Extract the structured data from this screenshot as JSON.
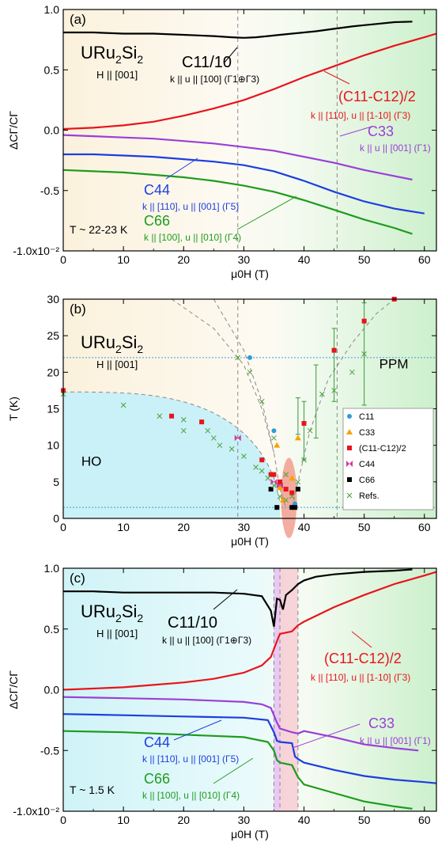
{
  "chart_data": [
    {
      "panel": "(a)",
      "type": "line",
      "compound_main": "URu",
      "compound_sub1": "2",
      "compound_mid": "Si",
      "compound_sub2": "2",
      "field_dir": "H || [001]",
      "temp_label": "T ~ 22-23 K",
      "ylabel": "ΔCΓ/CΓ",
      "xlabel": "μ0H (T)",
      "xlim": [
        0,
        62
      ],
      "ylim": [
        -1.0,
        1.0
      ],
      "xticks": [
        0,
        10,
        20,
        30,
        40,
        50,
        60
      ],
      "ytick_labels": [
        [
          "1.0",
          1.0
        ],
        [
          "0.5",
          0.5
        ],
        [
          "0.0",
          0.0
        ],
        [
          "-0.5",
          -0.5
        ],
        [
          "-1.0x10⁻²",
          -1.0
        ]
      ],
      "vlines": [
        29,
        45.5
      ],
      "series": [
        {
          "name": "C11/10",
          "color": "#000000",
          "note": "k || u || [100]  (Γ1⊕Γ3)",
          "x": [
            0,
            5,
            10,
            15,
            20,
            25,
            28,
            30,
            32,
            34,
            36,
            38,
            40,
            42,
            45,
            48,
            50,
            52,
            55,
            58
          ],
          "y": [
            0.81,
            0.81,
            0.8,
            0.8,
            0.79,
            0.78,
            0.77,
            0.765,
            0.77,
            0.78,
            0.79,
            0.8,
            0.81,
            0.82,
            0.84,
            0.86,
            0.87,
            0.88,
            0.895,
            0.9
          ]
        },
        {
          "name": "(C11-C12)/2",
          "color": "#e8141c",
          "note": "k || [110], u || [1-10]  (Γ3)",
          "x": [
            0,
            5,
            10,
            15,
            20,
            25,
            30,
            35,
            40,
            45,
            50,
            55,
            60,
            62
          ],
          "y": [
            0.01,
            0.02,
            0.04,
            0.07,
            0.12,
            0.18,
            0.25,
            0.34,
            0.44,
            0.53,
            0.62,
            0.7,
            0.77,
            0.8
          ]
        },
        {
          "name": "C33",
          "color": "#9b3fd6",
          "note": "k || u || [001]  (Γ1)",
          "x": [
            0,
            5,
            10,
            15,
            20,
            25,
            30,
            35,
            40,
            45,
            50,
            55,
            58
          ],
          "y": [
            -0.04,
            -0.05,
            -0.06,
            -0.07,
            -0.09,
            -0.11,
            -0.14,
            -0.17,
            -0.22,
            -0.27,
            -0.33,
            -0.38,
            -0.41
          ]
        },
        {
          "name": "C44",
          "color": "#1c3ee0",
          "note": "k || [110], u || [001]  (Γ5)",
          "x": [
            0,
            5,
            10,
            15,
            20,
            25,
            30,
            35,
            40,
            45,
            50,
            55,
            60
          ],
          "y": [
            -0.2,
            -0.2,
            -0.21,
            -0.22,
            -0.24,
            -0.26,
            -0.29,
            -0.34,
            -0.42,
            -0.51,
            -0.59,
            -0.65,
            -0.69
          ]
        },
        {
          "name": "C66",
          "color": "#1e9b1e",
          "note": "k || [100], u || [010]  (Γ4)",
          "x": [
            0,
            5,
            10,
            15,
            20,
            25,
            30,
            35,
            40,
            45,
            50,
            55,
            58
          ],
          "y": [
            -0.33,
            -0.34,
            -0.35,
            -0.37,
            -0.39,
            -0.42,
            -0.46,
            -0.51,
            -0.58,
            -0.66,
            -0.74,
            -0.81,
            -0.86
          ]
        }
      ]
    },
    {
      "panel": "(b)",
      "type": "scatter",
      "compound_main": "URu",
      "compound_sub1": "2",
      "compound_mid": "Si",
      "compound_sub2": "2",
      "field_dir": "H || [001]",
      "ylabel": "T (K)",
      "xlabel": "μ0H (T)",
      "xlim": [
        0,
        62
      ],
      "ylim": [
        0,
        30
      ],
      "xticks": [
        0,
        10,
        20,
        30,
        40,
        50,
        60
      ],
      "yticks": [
        0,
        5,
        10,
        15,
        20,
        25,
        30
      ],
      "hlines": [
        22,
        1.5
      ],
      "vlines": [
        29,
        45.5
      ],
      "regions": {
        "HO": "HO",
        "PPM": "PPM"
      },
      "legend": [
        "C11",
        "C33",
        "(C11-C12)/2",
        "C44",
        "C66",
        "Refs."
      ],
      "series": [
        {
          "name": "C11",
          "marker": "circle",
          "color": "#2a9fd6",
          "points": [
            [
              31,
              22
            ],
            [
              35,
              12
            ],
            [
              36,
              4.5
            ],
            [
              38.5,
              2
            ]
          ]
        },
        {
          "name": "C33",
          "marker": "triangle",
          "color": "#f5a300",
          "points": [
            [
              35.5,
              10
            ],
            [
              36,
              4.2
            ],
            [
              39,
              11
            ],
            [
              38,
              5.5
            ],
            [
              36.5,
              2.5
            ]
          ]
        },
        {
          "name": "(C11-C12)/2",
          "marker": "square",
          "color": "#e8141c",
          "points": [
            [
              0,
              17.5
            ],
            [
              18,
              14
            ],
            [
              23,
              13.2
            ],
            [
              33,
              8
            ],
            [
              34.5,
              6
            ],
            [
              35,
              6
            ],
            [
              36,
              5
            ],
            [
              37,
              4
            ],
            [
              38,
              3.5
            ],
            [
              40,
              13
            ],
            [
              45,
              23
            ],
            [
              50,
              27
            ],
            [
              55,
              30
            ]
          ]
        },
        {
          "name": "C44",
          "marker": "bowtie",
          "color": "#d6379b",
          "points": [
            [
              29,
              11
            ],
            [
              35,
              5
            ],
            [
              36,
              4.5
            ]
          ]
        },
        {
          "name": "C66",
          "marker": "square",
          "color": "#000000",
          "points": [
            [
              34.5,
              4
            ],
            [
              35.5,
              1.5
            ],
            [
              38,
              1.5
            ],
            [
              39,
              4
            ],
            [
              38.5,
              1.5
            ]
          ]
        },
        {
          "name": "Refs.",
          "marker": "cross",
          "color": "#4d9e3a",
          "points": [
            [
              0,
              17
            ],
            [
              10,
              15.5
            ],
            [
              16,
              14
            ],
            [
              20,
              13.5
            ],
            [
              24,
              12
            ],
            [
              26,
              10
            ],
            [
              28,
              9.5
            ],
            [
              30,
              8.5
            ],
            [
              32,
              7
            ],
            [
              33,
              6.5
            ],
            [
              34,
              5.5
            ],
            [
              35,
              4.5
            ],
            [
              36,
              3
            ],
            [
              37,
              2.5
            ],
            [
              38,
              3
            ],
            [
              39,
              5
            ],
            [
              40,
              8
            ],
            [
              41,
              12
            ],
            [
              43,
              17
            ],
            [
              45,
              17.5
            ],
            [
              48,
              20
            ],
            [
              50,
              22.5
            ],
            [
              20,
              12
            ],
            [
              25,
              11
            ],
            [
              29,
              22
            ],
            [
              31,
              20
            ],
            [
              33,
              16
            ],
            [
              35,
              11
            ],
            [
              37,
              6
            ]
          ]
        }
      ],
      "error_bars": [
        [
          39,
          14,
          2.5
        ],
        [
          40,
          12,
          4
        ],
        [
          42,
          16,
          5
        ],
        [
          45,
          21,
          5
        ],
        [
          50,
          22.5,
          7
        ]
      ]
    },
    {
      "panel": "(c)",
      "type": "line",
      "compound_main": "URu",
      "compound_sub1": "2",
      "compound_mid": "Si",
      "compound_sub2": "2",
      "field_dir": "H || [001]",
      "temp_label": "T ~ 1.5 K",
      "ylabel": "ΔCΓ/CΓ",
      "xlabel": "μ0H (T)",
      "xlim": [
        0,
        62
      ],
      "ylim": [
        -1.0,
        1.0
      ],
      "xticks": [
        0,
        10,
        20,
        30,
        40,
        50,
        60
      ],
      "ytick_labels": [
        [
          "1.0",
          1.0
        ],
        [
          "0.5",
          0.5
        ],
        [
          "0.0",
          0.0
        ],
        [
          "-0.5",
          -0.5
        ],
        [
          "-1.0x10⁻²",
          -1.0
        ]
      ],
      "vlines": [
        35,
        36,
        39
      ],
      "series": [
        {
          "name": "C11/10",
          "color": "#000000",
          "note": "k || u || [100]  (Γ1⊕Γ3)",
          "x": [
            0,
            5,
            10,
            15,
            20,
            25,
            30,
            33,
            34.5,
            35,
            35.5,
            36,
            36.5,
            37,
            38,
            39,
            40,
            42,
            45,
            50,
            55,
            58
          ],
          "y": [
            0.81,
            0.81,
            0.8,
            0.8,
            0.8,
            0.8,
            0.79,
            0.77,
            0.65,
            0.52,
            0.75,
            0.74,
            0.66,
            0.78,
            0.82,
            0.87,
            0.9,
            0.93,
            0.95,
            0.97,
            0.98,
            0.99
          ]
        },
        {
          "name": "(C11-C12)/2",
          "color": "#e8141c",
          "note": "k || [110], u || [1-10]  (Γ3)",
          "x": [
            0,
            5,
            10,
            15,
            20,
            25,
            30,
            33,
            34.5,
            35.5,
            36,
            38,
            39,
            40,
            45,
            50,
            55,
            60,
            62
          ],
          "y": [
            0.0,
            0.01,
            0.02,
            0.04,
            0.06,
            0.09,
            0.14,
            0.2,
            0.27,
            0.4,
            0.46,
            0.48,
            0.53,
            0.56,
            0.68,
            0.78,
            0.87,
            0.94,
            0.97
          ]
        },
        {
          "name": "C33",
          "color": "#9b3fd6",
          "note": "k || u || [001]  (Γ1)",
          "x": [
            0,
            10,
            20,
            30,
            33,
            34.5,
            35.5,
            36,
            38,
            39,
            40,
            45,
            50,
            55,
            59
          ],
          "y": [
            -0.06,
            -0.07,
            -0.08,
            -0.1,
            -0.12,
            -0.15,
            -0.27,
            -0.32,
            -0.35,
            -0.36,
            -0.34,
            -0.39,
            -0.45,
            -0.48,
            -0.5
          ]
        },
        {
          "name": "C44",
          "color": "#1c3ee0",
          "note": "k || [110], u || [001]  (Γ5)",
          "x": [
            0,
            10,
            20,
            30,
            34,
            35,
            35.5,
            36,
            38,
            38.5,
            39,
            40,
            45,
            50,
            55,
            60,
            62
          ],
          "y": [
            -0.2,
            -0.21,
            -0.22,
            -0.23,
            -0.25,
            -0.35,
            -0.42,
            -0.43,
            -0.44,
            -0.55,
            -0.57,
            -0.6,
            -0.66,
            -0.71,
            -0.74,
            -0.76,
            -0.77
          ]
        },
        {
          "name": "C66",
          "color": "#1e9b1e",
          "note": "k || [100], u || [010]  (Γ4)",
          "x": [
            0,
            10,
            20,
            30,
            34,
            35,
            35.5,
            36,
            38,
            39,
            40,
            45,
            50,
            55,
            58
          ],
          "y": [
            -0.34,
            -0.35,
            -0.37,
            -0.39,
            -0.43,
            -0.5,
            -0.58,
            -0.6,
            -0.62,
            -0.72,
            -0.78,
            -0.85,
            -0.92,
            -0.96,
            -0.98
          ]
        }
      ]
    }
  ]
}
